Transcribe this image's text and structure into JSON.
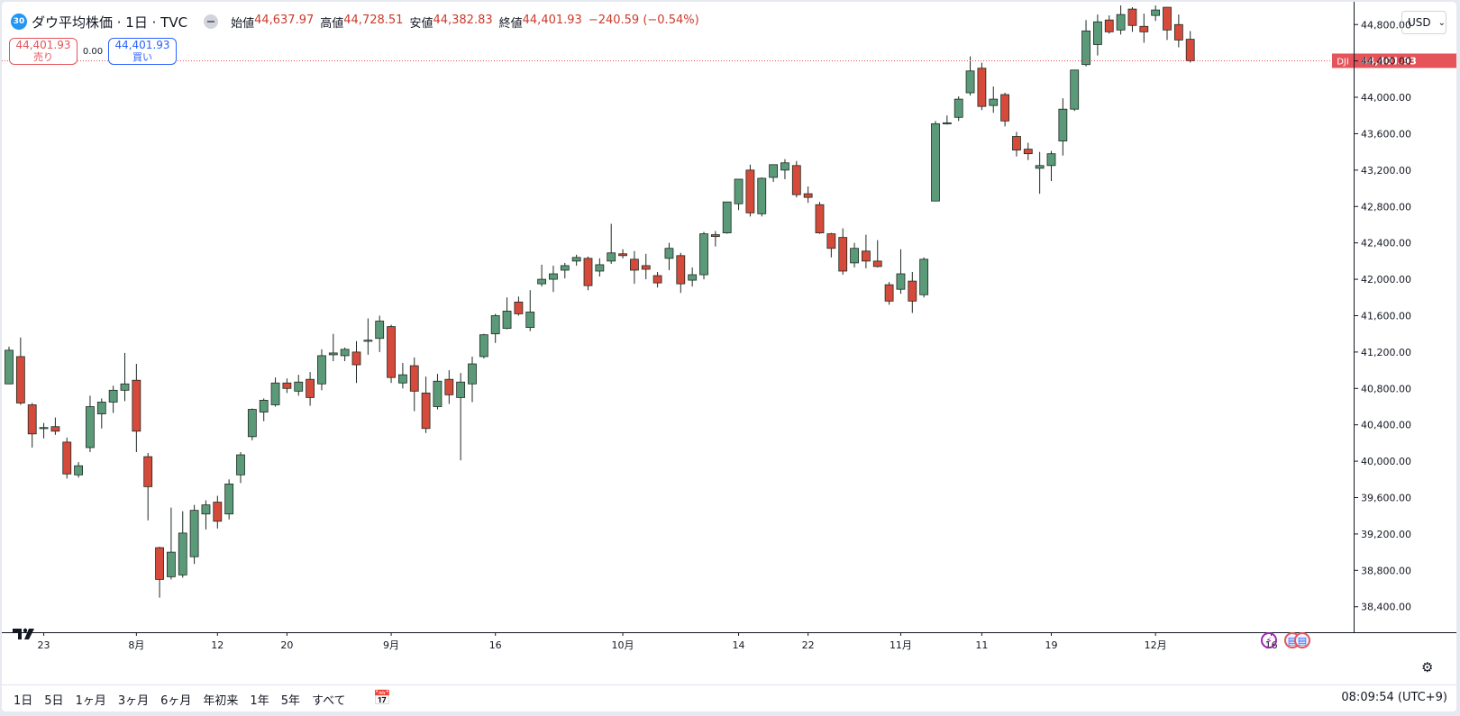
{
  "header": {
    "badge": "30",
    "title": "ダウ平均株価 · 1日 · TVC",
    "ohlc": [
      {
        "label": "始値",
        "value": "44,637.97"
      },
      {
        "label": "高値",
        "value": "44,728.51"
      },
      {
        "label": "安値",
        "value": "44,382.83"
      },
      {
        "label": "終値",
        "value": "44,401.93"
      }
    ],
    "change": "−240.59 (−0.54%)"
  },
  "trade": {
    "sell_price": "44,401.93",
    "sell_label": "売り",
    "spread": "0.00",
    "buy_price": "44,401.93",
    "buy_label": "買い"
  },
  "currency": {
    "value": "USD"
  },
  "last_price": {
    "symbol": "DJI",
    "value": "44,401.93"
  },
  "periods": [
    "1日",
    "5日",
    "1ヶ月",
    "3ヶ月",
    "6ヶ月",
    "年初来",
    "1年",
    "5年",
    "すべて"
  ],
  "clock": "08:09:54 (UTC+9)",
  "colors": {
    "up": "#5b9a79",
    "down": "#d54a3a",
    "outline": "#1e2a22",
    "price_line": "#e5545a"
  },
  "chart_data": {
    "type": "candlestick",
    "x_axis_labels": [
      {
        "i": 3,
        "label": "23"
      },
      {
        "i": 11,
        "label": "8月"
      },
      {
        "i": 18,
        "label": "12"
      },
      {
        "i": 24,
        "label": "20"
      },
      {
        "i": 33,
        "label": "9月"
      },
      {
        "i": 42,
        "label": "16"
      },
      {
        "i": 53,
        "label": "10月"
      },
      {
        "i": 63,
        "label": "14"
      },
      {
        "i": 69,
        "label": "22"
      },
      {
        "i": 77,
        "label": "11月"
      },
      {
        "i": 84,
        "label": "11"
      },
      {
        "i": 90,
        "label": "19"
      },
      {
        "i": 99,
        "label": "12月"
      },
      {
        "i": 109,
        "label": "16"
      }
    ],
    "y_ticks": [
      38400,
      38800,
      39200,
      39600,
      40000,
      40400,
      40800,
      41200,
      41600,
      42000,
      42400,
      42800,
      43200,
      43600,
      44000,
      44400,
      44800
    ],
    "y_range": [
      38120,
      45050
    ],
    "last_price": 44401.93,
    "candles": [
      [
        40850,
        41260,
        40880,
        41220
      ],
      [
        41150,
        41360,
        40620,
        40640
      ],
      [
        40620,
        40640,
        40150,
        40300
      ],
      [
        40370,
        40420,
        40250,
        40370
      ],
      [
        40380,
        40480,
        40290,
        40330
      ],
      [
        40210,
        40260,
        39810,
        39860
      ],
      [
        39850,
        39990,
        39820,
        39950
      ],
      [
        40150,
        40720,
        40100,
        40600
      ],
      [
        40520,
        40690,
        40360,
        40650
      ],
      [
        40650,
        40830,
        40530,
        40780
      ],
      [
        40780,
        41190,
        40660,
        40850
      ],
      [
        40890,
        41070,
        40100,
        40330
      ],
      [
        40050,
        40090,
        39350,
        39720
      ],
      [
        39050,
        39060,
        38500,
        38700
      ],
      [
        38730,
        39490,
        38700,
        39000
      ],
      [
        38750,
        39450,
        38720,
        39210
      ],
      [
        38950,
        39520,
        38870,
        39460
      ],
      [
        39420,
        39570,
        39250,
        39520
      ],
      [
        39550,
        39620,
        39260,
        39340
      ],
      [
        39420,
        39800,
        39360,
        39750
      ],
      [
        39850,
        40100,
        39760,
        40070
      ],
      [
        40270,
        40580,
        40230,
        40570
      ],
      [
        40540,
        40690,
        40440,
        40670
      ],
      [
        40620,
        40920,
        40600,
        40860
      ],
      [
        40860,
        40910,
        40750,
        40800
      ],
      [
        40770,
        40950,
        40720,
        40870
      ],
      [
        40900,
        40980,
        40610,
        40700
      ],
      [
        40850,
        41230,
        40780,
        41160
      ],
      [
        41170,
        41400,
        41100,
        41190
      ],
      [
        41160,
        41250,
        41100,
        41230
      ],
      [
        41200,
        41320,
        40860,
        41060
      ],
      [
        41320,
        41570,
        41170,
        41330
      ],
      [
        41350,
        41600,
        41200,
        41540
      ],
      [
        41480,
        41500,
        40860,
        40920
      ],
      [
        40860,
        41080,
        40800,
        40950
      ],
      [
        41050,
        41140,
        40550,
        40770
      ],
      [
        40750,
        40930,
        40310,
        40360
      ],
      [
        40600,
        40960,
        40570,
        40880
      ],
      [
        40900,
        41000,
        40630,
        40730
      ],
      [
        40700,
        40970,
        40010,
        40870
      ],
      [
        40850,
        41150,
        40650,
        41070
      ],
      [
        41150,
        41400,
        41130,
        41390
      ],
      [
        41400,
        41620,
        41300,
        41600
      ],
      [
        41460,
        41800,
        41450,
        41650
      ],
      [
        41750,
        41810,
        41600,
        41620
      ],
      [
        41470,
        41880,
        41430,
        41640
      ],
      [
        41950,
        42160,
        41920,
        42000
      ],
      [
        42000,
        42150,
        41860,
        42060
      ],
      [
        42100,
        42180,
        42010,
        42150
      ],
      [
        42200,
        42270,
        42150,
        42240
      ],
      [
        42230,
        42250,
        41880,
        41930
      ],
      [
        42090,
        42230,
        42030,
        42160
      ],
      [
        42200,
        42610,
        42170,
        42290
      ],
      [
        42280,
        42330,
        42230,
        42260
      ],
      [
        42220,
        42310,
        41950,
        42100
      ],
      [
        42150,
        42280,
        42000,
        42110
      ],
      [
        42040,
        42080,
        41910,
        41960
      ],
      [
        42230,
        42400,
        42100,
        42340
      ],
      [
        42260,
        42290,
        41850,
        41950
      ],
      [
        41990,
        42130,
        41920,
        42050
      ],
      [
        42050,
        42520,
        42000,
        42500
      ],
      [
        42490,
        42530,
        42360,
        42470
      ],
      [
        42510,
        42850,
        42500,
        42850
      ],
      [
        42830,
        43100,
        42760,
        43100
      ],
      [
        43200,
        43260,
        42690,
        42730
      ],
      [
        42720,
        43120,
        42690,
        43110
      ],
      [
        43120,
        43260,
        43070,
        43260
      ],
      [
        43200,
        43320,
        43100,
        43280
      ],
      [
        43250,
        43300,
        42900,
        42930
      ],
      [
        42940,
        43020,
        42840,
        42900
      ],
      [
        42820,
        42850,
        42500,
        42510
      ],
      [
        42500,
        42510,
        42240,
        42340
      ],
      [
        42460,
        42560,
        42050,
        42090
      ],
      [
        42180,
        42400,
        42130,
        42340
      ],
      [
        42310,
        42490,
        42120,
        42200
      ],
      [
        42200,
        42430,
        42130,
        42140
      ],
      [
        41940,
        41970,
        41720,
        41760
      ],
      [
        41890,
        42330,
        41840,
        42060
      ],
      [
        41980,
        42080,
        41630,
        41760
      ],
      [
        41830,
        42240,
        41800,
        42220
      ],
      [
        42860,
        43740,
        42860,
        43710
      ],
      [
        43720,
        43800,
        43700,
        43720
      ],
      [
        43780,
        44010,
        43740,
        43980
      ],
      [
        44050,
        44450,
        44020,
        44290
      ],
      [
        44320,
        44380,
        43860,
        43900
      ],
      [
        43910,
        44120,
        43830,
        43980
      ],
      [
        44030,
        44050,
        43680,
        43740
      ],
      [
        43570,
        43620,
        43350,
        43420
      ],
      [
        43430,
        43500,
        43310,
        43380
      ],
      [
        43220,
        43400,
        42940,
        43250
      ],
      [
        43250,
        43410,
        43080,
        43380
      ],
      [
        43520,
        43990,
        43360,
        43870
      ],
      [
        43870,
        44300,
        43850,
        44300
      ],
      [
        44360,
        44850,
        44340,
        44730
      ],
      [
        44580,
        44910,
        44460,
        44830
      ],
      [
        44850,
        44900,
        44700,
        44720
      ],
      [
        44740,
        45010,
        44690,
        44910
      ],
      [
        44970,
        44990,
        44720,
        44790
      ],
      [
        44780,
        44920,
        44600,
        44720
      ],
      [
        44900,
        45010,
        44840,
        44960
      ],
      [
        44990,
        44990,
        44630,
        44740
      ],
      [
        44800,
        44910,
        44550,
        44630
      ],
      [
        44637.97,
        44728.51,
        44382.83,
        44401.93
      ]
    ]
  }
}
